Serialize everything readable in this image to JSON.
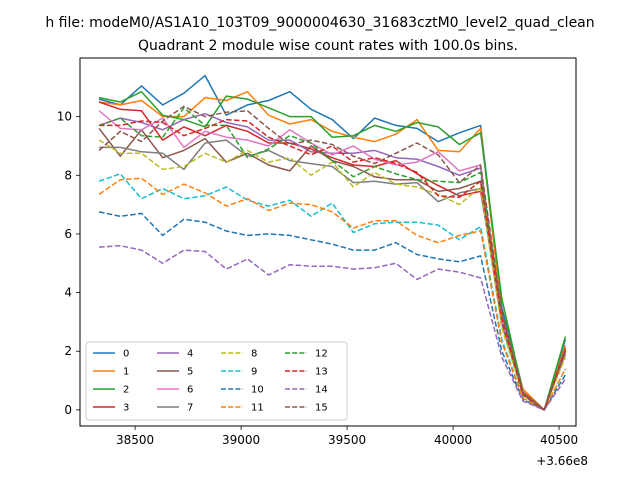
{
  "chart_data": {
    "type": "line",
    "suptitle": "h file: modeM0/AS1A10_103T09_9000004630_31683cztM0_level2_quad_clean",
    "title": "Quadrant 2 module wise count rates with 100.0s bins.",
    "xlabel": "",
    "ylabel": "",
    "x_offset_label": "+3.66e8",
    "xlim": [
      38240,
      40580
    ],
    "ylim": [
      -0.55,
      12.0
    ],
    "xticks": [
      38500,
      39000,
      39500,
      40000,
      40500
    ],
    "yticks": [
      0,
      2,
      4,
      6,
      8,
      10
    ],
    "grid": false,
    "legend_position": "lower-left",
    "legend_columns": 4,
    "x": [
      38330,
      38430,
      38530,
      38630,
      38730,
      38830,
      38930,
      39030,
      39130,
      39230,
      39330,
      39430,
      39530,
      39630,
      39730,
      39830,
      39930,
      40030,
      40130,
      40230,
      40330,
      40430,
      40530
    ],
    "series": [
      {
        "name": "0",
        "color": "#1f77b4",
        "dash": "solid",
        "values": [
          10.6,
          10.4,
          11.05,
          10.4,
          10.8,
          11.4,
          10.05,
          10.4,
          10.55,
          10.85,
          10.25,
          9.9,
          9.25,
          9.95,
          9.7,
          9.6,
          9.15,
          9.45,
          9.7,
          3.5,
          0.7,
          0.0,
          2.4
        ]
      },
      {
        "name": "1",
        "color": "#ff7f0e",
        "dash": "solid",
        "values": [
          10.5,
          10.4,
          10.55,
          10.0,
          10.0,
          10.65,
          10.55,
          10.85,
          10.05,
          9.75,
          9.9,
          9.5,
          9.3,
          9.15,
          9.4,
          9.9,
          8.85,
          8.8,
          9.6,
          3.3,
          0.7,
          0.0,
          2.2
        ]
      },
      {
        "name": "2",
        "color": "#2ca02c",
        "dash": "solid",
        "values": [
          10.65,
          10.5,
          10.85,
          10.05,
          9.9,
          9.65,
          10.7,
          10.6,
          10.3,
          10.0,
          10.0,
          9.3,
          9.35,
          9.7,
          9.5,
          9.8,
          9.65,
          9.05,
          9.45,
          3.8,
          0.6,
          0.0,
          2.5
        ]
      },
      {
        "name": "3",
        "color": "#d62728",
        "dash": "solid",
        "values": [
          10.5,
          10.25,
          10.2,
          9.2,
          9.65,
          9.35,
          9.7,
          9.5,
          9.1,
          9.1,
          8.9,
          8.6,
          8.35,
          8.3,
          8.5,
          8.05,
          7.65,
          7.3,
          7.45,
          3.2,
          0.6,
          0.0,
          2.1
        ]
      },
      {
        "name": "4",
        "color": "#9467bd",
        "dash": "solid",
        "values": [
          9.7,
          9.95,
          9.8,
          9.55,
          9.9,
          10.1,
          9.8,
          9.65,
          9.2,
          9.2,
          8.8,
          8.75,
          8.75,
          8.85,
          8.6,
          8.55,
          8.3,
          8.0,
          8.25,
          3.0,
          0.55,
          0.0,
          2.0
        ]
      },
      {
        "name": "5",
        "color": "#8c564b",
        "dash": "solid",
        "values": [
          9.6,
          8.65,
          9.55,
          8.6,
          8.85,
          9.25,
          8.45,
          8.75,
          8.35,
          8.15,
          9.0,
          8.5,
          8.3,
          7.95,
          7.85,
          7.85,
          7.45,
          7.55,
          7.8,
          3.0,
          0.55,
          0.0,
          2.0
        ]
      },
      {
        "name": "6",
        "color": "#e377c2",
        "dash": "solid",
        "values": [
          10.2,
          9.6,
          9.55,
          9.95,
          8.95,
          9.5,
          9.3,
          9.2,
          9.0,
          9.55,
          9.1,
          8.7,
          9.0,
          8.55,
          8.35,
          8.45,
          8.8,
          8.15,
          8.35,
          3.1,
          0.55,
          0.0,
          2.0
        ]
      },
      {
        "name": "7",
        "color": "#7f7f7f",
        "dash": "solid",
        "values": [
          8.95,
          8.95,
          8.8,
          8.75,
          8.2,
          9.1,
          9.2,
          8.65,
          8.85,
          8.5,
          8.4,
          8.3,
          7.75,
          7.8,
          7.7,
          7.75,
          7.1,
          7.4,
          7.55,
          2.9,
          0.55,
          0.0,
          1.9
        ]
      },
      {
        "name": "8",
        "color": "#bcbd22",
        "dash": "dashed",
        "values": [
          9.2,
          8.75,
          8.75,
          8.2,
          8.3,
          8.75,
          8.45,
          8.85,
          8.45,
          8.6,
          8.0,
          8.45,
          7.6,
          8.1,
          7.7,
          7.6,
          7.35,
          7.0,
          7.6,
          2.8,
          0.5,
          0.0,
          1.8
        ]
      },
      {
        "name": "9",
        "color": "#17becf",
        "dash": "dashed",
        "values": [
          7.8,
          8.05,
          7.2,
          7.55,
          7.2,
          7.3,
          7.6,
          7.15,
          6.95,
          7.15,
          6.6,
          7.05,
          6.05,
          6.35,
          6.4,
          6.4,
          6.3,
          5.8,
          6.25,
          2.4,
          0.4,
          0.0,
          1.4
        ]
      },
      {
        "name": "10",
        "color": "#1f77b4",
        "dash": "dashed",
        "values": [
          6.75,
          6.6,
          6.7,
          5.95,
          6.5,
          6.4,
          6.1,
          5.95,
          6.0,
          5.95,
          5.8,
          5.65,
          5.45,
          5.45,
          5.7,
          5.3,
          5.15,
          5.05,
          5.25,
          2.0,
          0.35,
          0.0,
          1.2
        ]
      },
      {
        "name": "11",
        "color": "#ff7f0e",
        "dash": "dashed",
        "values": [
          7.35,
          7.85,
          7.9,
          7.35,
          7.7,
          7.4,
          6.95,
          7.2,
          6.8,
          7.05,
          7.0,
          6.75,
          6.2,
          6.45,
          6.45,
          5.95,
          5.7,
          5.95,
          6.1,
          2.3,
          0.4,
          0.0,
          1.4
        ]
      },
      {
        "name": "12",
        "color": "#2ca02c",
        "dash": "dashed",
        "values": [
          9.7,
          9.95,
          9.35,
          9.3,
          10.3,
          9.7,
          9.7,
          8.6,
          8.9,
          9.35,
          9.1,
          8.5,
          7.95,
          8.3,
          8.05,
          7.85,
          7.8,
          7.75,
          8.1,
          3.3,
          0.55,
          0.0,
          2.05
        ]
      },
      {
        "name": "13",
        "color": "#d62728",
        "dash": "dashed",
        "values": [
          9.7,
          9.7,
          9.85,
          9.8,
          9.35,
          9.6,
          9.9,
          9.85,
          9.3,
          9.0,
          8.7,
          9.0,
          8.45,
          8.6,
          8.4,
          8.1,
          7.3,
          7.25,
          7.8,
          3.1,
          0.5,
          0.0,
          2.0
        ]
      },
      {
        "name": "14",
        "color": "#9467bd",
        "dash": "dashed",
        "values": [
          5.55,
          5.6,
          5.45,
          5.0,
          5.45,
          5.4,
          4.8,
          5.15,
          4.6,
          4.95,
          4.9,
          4.9,
          4.8,
          4.85,
          5.0,
          4.45,
          4.8,
          4.7,
          4.5,
          1.8,
          0.3,
          0.0,
          1.05
        ]
      },
      {
        "name": "15",
        "color": "#8c564b",
        "dash": "dashed",
        "values": [
          8.85,
          9.5,
          9.15,
          9.85,
          10.35,
          10.0,
          10.15,
          10.2,
          9.6,
          9.05,
          9.2,
          9.05,
          8.65,
          8.4,
          8.75,
          9.1,
          8.7,
          7.75,
          8.35,
          3.35,
          0.55,
          0.0,
          2.05
        ]
      }
    ]
  }
}
